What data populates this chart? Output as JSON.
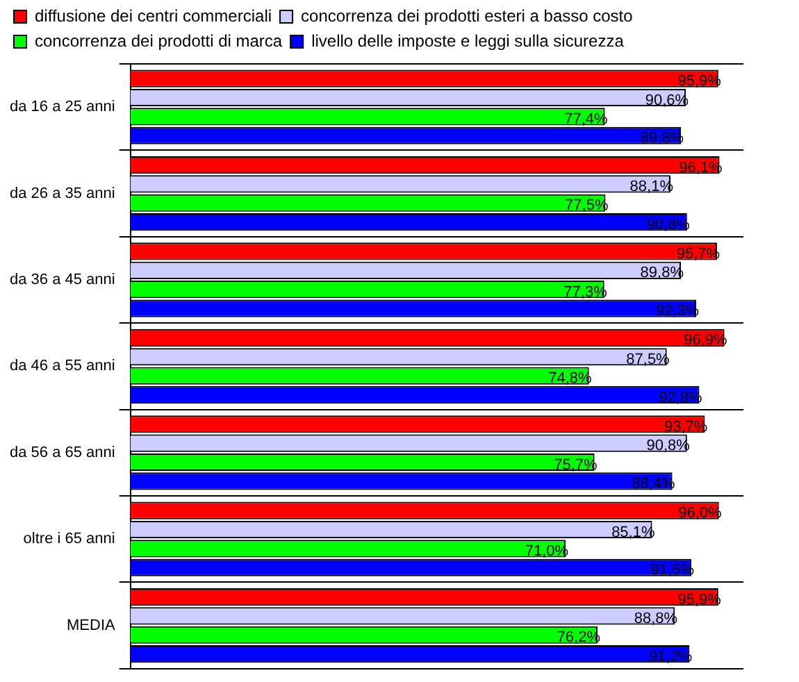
{
  "chart_data": {
    "type": "bar",
    "orientation": "horizontal",
    "legend": "top left",
    "grid": "y",
    "tick_labels": "y",
    "categories": [
      "da 16 a 25 anni",
      "da 26 a 35 anni",
      "da 36 a 45 anni",
      "da 46 a 55 anni",
      "da 56 a 65 anni",
      "oltre i 65 anni",
      "MEDIA"
    ],
    "series": [
      {
        "name": "diffusione dei centri commerciali",
        "color": "#ff0000",
        "values": [
          95.9,
          96.1,
          95.7,
          96.9,
          93.7,
          96.0,
          95.9
        ],
        "value_labels": [
          "95,9%",
          "96,1%",
          "95,7%",
          "96,9%",
          "93,7%",
          "96,0%",
          "95,9%"
        ]
      },
      {
        "name": "concorrenza dei prodotti esteri a basso costo",
        "color": "#ccccff",
        "values": [
          90.6,
          88.1,
          89.8,
          87.5,
          90.8,
          85.1,
          88.8
        ],
        "value_labels": [
          "90,6%",
          "88,1%",
          "89,8%",
          "87,5%",
          "90,8%",
          "85,1%",
          "88,8%"
        ]
      },
      {
        "name": "concorrenza dei prodotti di marca",
        "color": "#00ff00",
        "values": [
          77.4,
          77.5,
          77.3,
          74.8,
          75.7,
          71.0,
          76.2
        ],
        "value_labels": [
          "77,4%",
          "77,5%",
          "77,3%",
          "74,8%",
          "75,7%",
          "71,0%",
          "76,2%"
        ]
      },
      {
        "name": "livello delle imposte e leggi sulla sicurezza",
        "color": "#0000ff",
        "values": [
          89.8,
          90.8,
          92.3,
          92.8,
          88.4,
          91.5,
          91.2
        ],
        "value_labels": [
          "89,8%",
          "90,8%",
          "92,3%",
          "92,8%",
          "88,4%",
          "91,5%",
          "91,2%"
        ]
      }
    ]
  }
}
